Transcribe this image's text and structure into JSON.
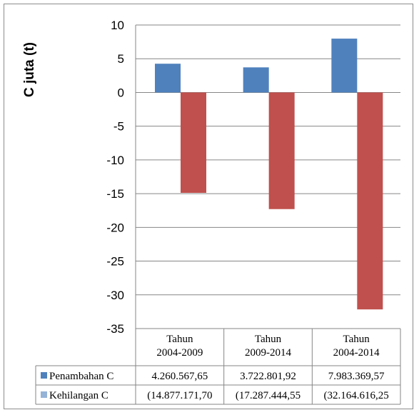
{
  "chart_data": {
    "type": "bar",
    "ylabel": "C juta (t)",
    "ylim": [
      -35,
      10
    ],
    "yticks": [
      10,
      5,
      0,
      -5,
      -10,
      -15,
      -20,
      -25,
      -30,
      -35
    ],
    "grid": true,
    "legend_placement": "data-table",
    "categories": [
      [
        "Tahun",
        "2004-2009"
      ],
      [
        "Tahun",
        "2009-2014"
      ],
      [
        "Tahun",
        "2004-2014"
      ]
    ],
    "series": [
      {
        "name": "Penambahan C",
        "color": "#4f81bd",
        "values": [
          4.26,
          3.72,
          7.98
        ],
        "table_values": [
          "4.260.567,65",
          "3.722.801,92",
          "7.983.369,57"
        ]
      },
      {
        "name": "Kehilangan  C",
        "color": "#c0504d",
        "legend_color": "#95b3d7",
        "values": [
          -14.88,
          -17.29,
          -32.16
        ],
        "table_values": [
          "(14.877.171,70",
          "(17.287.444,55",
          "(32.164.616,25"
        ]
      }
    ]
  }
}
